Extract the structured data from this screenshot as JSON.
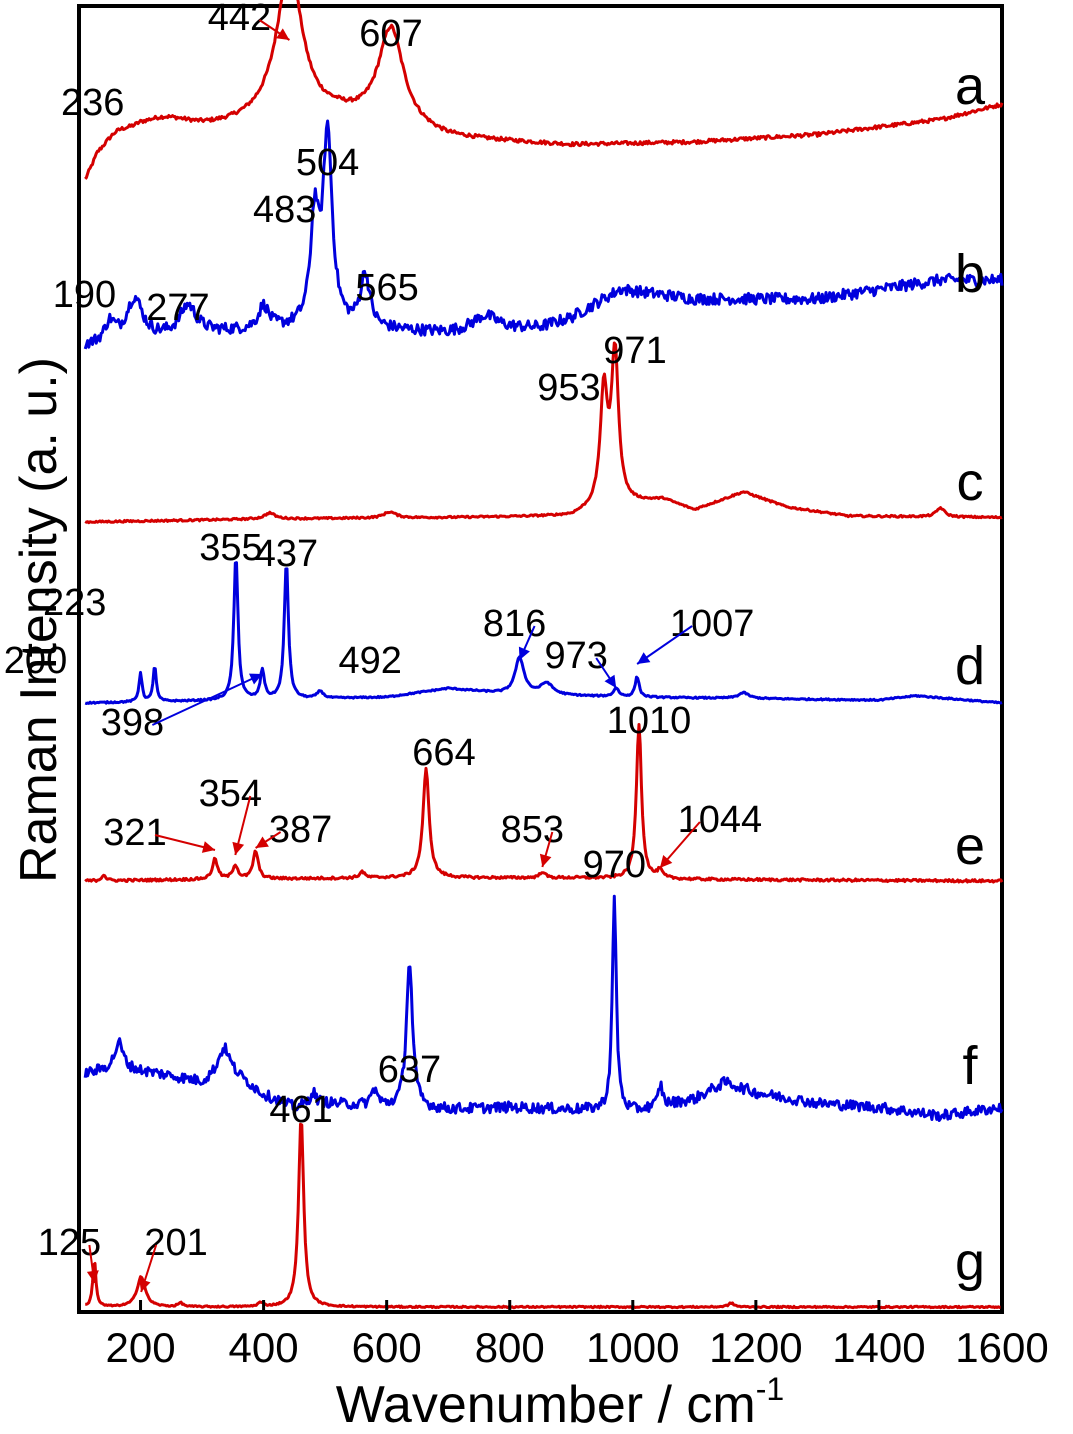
{
  "chart_data": {
    "type": "line",
    "xlabel": "Wavenumber / cm",
    "xlabel_sup": "-1",
    "ylabel": "Raman Intensity (a. u.)",
    "xlim": [
      100,
      1600
    ],
    "x_ticks": [
      "200",
      "400",
      "600",
      "800",
      "1000",
      "1200",
      "1400",
      "1600"
    ],
    "x_tick_values": [
      200,
      400,
      600,
      800,
      1000,
      1200,
      1400,
      1600
    ],
    "y_ticks": false,
    "grid": false,
    "series": [
      {
        "name": "a",
        "color": "#d40000",
        "noise": 0.012,
        "baseline": [
          [
            110,
            0.0
          ],
          [
            130,
            0.15
          ],
          [
            200,
            0.3
          ],
          [
            300,
            0.35
          ],
          [
            400,
            0.42
          ],
          [
            520,
            0.45
          ],
          [
            700,
            0.32
          ],
          [
            900,
            0.28
          ],
          [
            1100,
            0.3
          ],
          [
            1300,
            0.35
          ],
          [
            1500,
            0.45
          ],
          [
            1600,
            0.55
          ]
        ],
        "peaks": [
          [
            442,
            1.0,
            25
          ],
          [
            607,
            0.65,
            25
          ],
          [
            236,
            0.12,
            60
          ],
          [
            160,
            0.1,
            30
          ]
        ],
        "labels": [
          {
            "text": "442",
            "x": 442,
            "arrow": true
          },
          {
            "text": "607",
            "x": 607
          },
          {
            "text": "236",
            "x": 236
          }
        ]
      },
      {
        "name": "b",
        "color": "#0000dd",
        "noise": 0.03,
        "baseline": [
          [
            110,
            0.05
          ],
          [
            300,
            0.12
          ],
          [
            500,
            0.15
          ],
          [
            700,
            0.12
          ],
          [
            850,
            0.15
          ],
          [
            900,
            0.2
          ],
          [
            980,
            0.35
          ],
          [
            1100,
            0.3
          ],
          [
            1300,
            0.3
          ],
          [
            1500,
            0.4
          ],
          [
            1600,
            0.4
          ]
        ],
        "peaks": [
          [
            504,
            1.0,
            9
          ],
          [
            483,
            0.55,
            8
          ],
          [
            565,
            0.28,
            9
          ],
          [
            190,
            0.22,
            16
          ],
          [
            277,
            0.15,
            16
          ],
          [
            400,
            0.12,
            10
          ],
          [
            150,
            0.1,
            10
          ],
          [
            760,
            0.08,
            25
          ]
        ],
        "labels": [
          {
            "text": "504",
            "x": 504
          },
          {
            "text": "483",
            "x": 483
          },
          {
            "text": "565",
            "x": 565
          },
          {
            "text": "190",
            "x": 190
          },
          {
            "text": "277",
            "x": 277
          }
        ]
      },
      {
        "name": "c",
        "color": "#d40000",
        "noise": 0.006,
        "baseline": [
          [
            110,
            0.0
          ],
          [
            400,
            0.02
          ],
          [
            700,
            0.03
          ],
          [
            900,
            0.04
          ],
          [
            950,
            0.1
          ],
          [
            1050,
            0.15
          ],
          [
            1100,
            0.08
          ],
          [
            1180,
            0.2
          ],
          [
            1250,
            0.1
          ],
          [
            1350,
            0.04
          ],
          [
            1600,
            0.03
          ]
        ],
        "peaks": [
          [
            971,
            1.0,
            7
          ],
          [
            953,
            0.75,
            7
          ],
          [
            1500,
            0.06,
            8
          ],
          [
            410,
            0.04,
            10
          ],
          [
            605,
            0.04,
            12
          ]
        ],
        "labels": [
          {
            "text": "971",
            "x": 971
          },
          {
            "text": "953",
            "x": 953
          }
        ]
      },
      {
        "name": "d",
        "color": "#0000dd",
        "noise": 0.005,
        "baseline": [
          [
            110,
            0.0
          ],
          [
            500,
            0.03
          ],
          [
            600,
            0.04
          ],
          [
            700,
            0.1
          ],
          [
            800,
            0.06
          ],
          [
            900,
            0.05
          ],
          [
            1000,
            0.04
          ],
          [
            1400,
            0.02
          ],
          [
            1460,
            0.05
          ],
          [
            1600,
            0.0
          ]
        ],
        "peaks": [
          [
            355,
            1.0,
            4
          ],
          [
            437,
            0.95,
            4
          ],
          [
            223,
            0.25,
            3
          ],
          [
            200,
            0.2,
            3
          ],
          [
            398,
            0.2,
            4
          ],
          [
            492,
            0.05,
            6
          ],
          [
            816,
            0.25,
            9
          ],
          [
            860,
            0.08,
            12
          ],
          [
            973,
            0.06,
            5
          ],
          [
            1007,
            0.14,
            4
          ],
          [
            1180,
            0.04,
            10
          ]
        ],
        "labels": [
          {
            "text": "355",
            "x": 355
          },
          {
            "text": "437",
            "x": 437
          },
          {
            "text": "223",
            "x": 223
          },
          {
            "text": "200",
            "x": 200
          },
          {
            "text": "398",
            "x": 398,
            "arrow": true
          },
          {
            "text": "492",
            "x": 492
          },
          {
            "text": "816",
            "x": 816,
            "arrow": true
          },
          {
            "text": "973",
            "x": 973,
            "arrow": true
          },
          {
            "text": "1007",
            "x": 1007,
            "arrow": true
          }
        ]
      },
      {
        "name": "e",
        "color": "#d40000",
        "noise": 0.008,
        "baseline": [
          [
            110,
            0.0
          ],
          [
            300,
            0.01
          ],
          [
            600,
            0.02
          ],
          [
            900,
            0.02
          ],
          [
            1100,
            0.01
          ],
          [
            1600,
            0.0
          ]
        ],
        "peaks": [
          [
            1010,
            1.0,
            5
          ],
          [
            664,
            0.7,
            6
          ],
          [
            387,
            0.18,
            5
          ],
          [
            321,
            0.13,
            5
          ],
          [
            354,
            0.09,
            5
          ],
          [
            853,
            0.04,
            5
          ],
          [
            1044,
            0.05,
            5
          ],
          [
            140,
            0.04,
            4
          ],
          [
            560,
            0.04,
            5
          ]
        ],
        "labels": [
          {
            "text": "664",
            "x": 664
          },
          {
            "text": "1010",
            "x": 1010
          },
          {
            "text": "321",
            "x": 321,
            "arrow": true
          },
          {
            "text": "354",
            "x": 354,
            "arrow": true
          },
          {
            "text": "387",
            "x": 387,
            "arrow": true
          },
          {
            "text": "853",
            "x": 853,
            "arrow": true
          },
          {
            "text": "1044",
            "x": 1044,
            "arrow": true
          }
        ]
      },
      {
        "name": "f",
        "color": "#0000dd",
        "noise": 0.025,
        "baseline": [
          [
            110,
            0.22
          ],
          [
            160,
            0.25
          ],
          [
            230,
            0.22
          ],
          [
            300,
            0.18
          ],
          [
            340,
            0.25
          ],
          [
            400,
            0.12
          ],
          [
            450,
            0.06
          ],
          [
            500,
            0.08
          ],
          [
            600,
            0.06
          ],
          [
            700,
            0.05
          ],
          [
            800,
            0.06
          ],
          [
            900,
            0.05
          ],
          [
            1000,
            0.04
          ],
          [
            1100,
            0.1
          ],
          [
            1150,
            0.18
          ],
          [
            1200,
            0.13
          ],
          [
            1300,
            0.08
          ],
          [
            1400,
            0.06
          ],
          [
            1500,
            0.02
          ],
          [
            1600,
            0.06
          ]
        ],
        "peaks": [
          [
            970,
            1.0,
            4
          ],
          [
            637,
            0.7,
            6
          ],
          [
            165,
            0.12,
            8
          ],
          [
            335,
            0.1,
            10
          ],
          [
            1045,
            0.1,
            4
          ],
          [
            480,
            0.06,
            6
          ],
          [
            580,
            0.08,
            6
          ]
        ],
        "labels": [
          {
            "text": "970",
            "x": 970
          },
          {
            "text": "637",
            "x": 637
          }
        ]
      },
      {
        "name": "g",
        "color": "#d40000",
        "noise": 0.004,
        "baseline": [
          [
            110,
            0.0
          ],
          [
            1600,
            0.0
          ]
        ],
        "peaks": [
          [
            461,
            1.0,
            5
          ],
          [
            125,
            0.25,
            3
          ],
          [
            201,
            0.16,
            8
          ],
          [
            265,
            0.02,
            5
          ],
          [
            395,
            0.02,
            5
          ],
          [
            1160,
            0.02,
            6
          ]
        ],
        "labels": [
          {
            "text": "461",
            "x": 461
          },
          {
            "text": "125",
            "x": 125,
            "arrow": true
          },
          {
            "text": "201",
            "x": 201,
            "arrow": true
          }
        ]
      }
    ]
  }
}
